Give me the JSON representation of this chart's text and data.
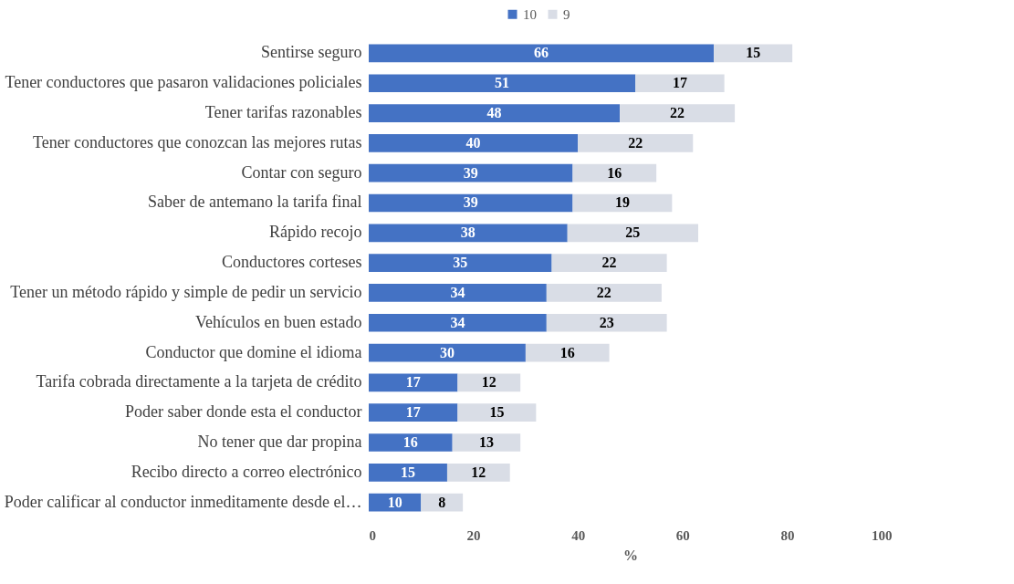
{
  "chart_data": {
    "type": "bar",
    "orientation": "horizontal",
    "stacked": true,
    "categories": [
      "Sentirse seguro",
      "Tener conductores que pasaron validaciones policiales",
      "Tener tarifas razonables",
      "Tener conductores que conozcan las mejores rutas",
      "Contar con seguro",
      "Saber de antemano la tarifa final",
      "Rápido recojo",
      "Conductores corteses",
      "Tener un método rápido y simple de pedir un servicio",
      "Vehículos en buen estado",
      "Conductor que domine el idioma",
      "Tarifa cobrada directamente a la tarjeta de crédito",
      "Poder saber donde esta el conductor",
      "No tener que dar propina",
      "Recibo directo a correo electrónico",
      "Poder calificar al conductor inmeditamente desde el…"
    ],
    "series": [
      {
        "name": "10",
        "color": "#4472c4",
        "values": [
          66,
          51,
          48,
          40,
          39,
          39,
          38,
          35,
          34,
          34,
          30,
          17,
          17,
          16,
          15,
          10
        ]
      },
      {
        "name": "9",
        "color": "#d9dde6",
        "values": [
          15,
          17,
          22,
          22,
          16,
          19,
          25,
          22,
          22,
          23,
          16,
          12,
          15,
          13,
          12,
          8
        ]
      }
    ],
    "xlim": [
      0,
      100
    ],
    "xticks": [
      0,
      20,
      40,
      60,
      80,
      100
    ],
    "xlabel": "%",
    "data_labels": true,
    "legend": "top",
    "grid": false
  }
}
